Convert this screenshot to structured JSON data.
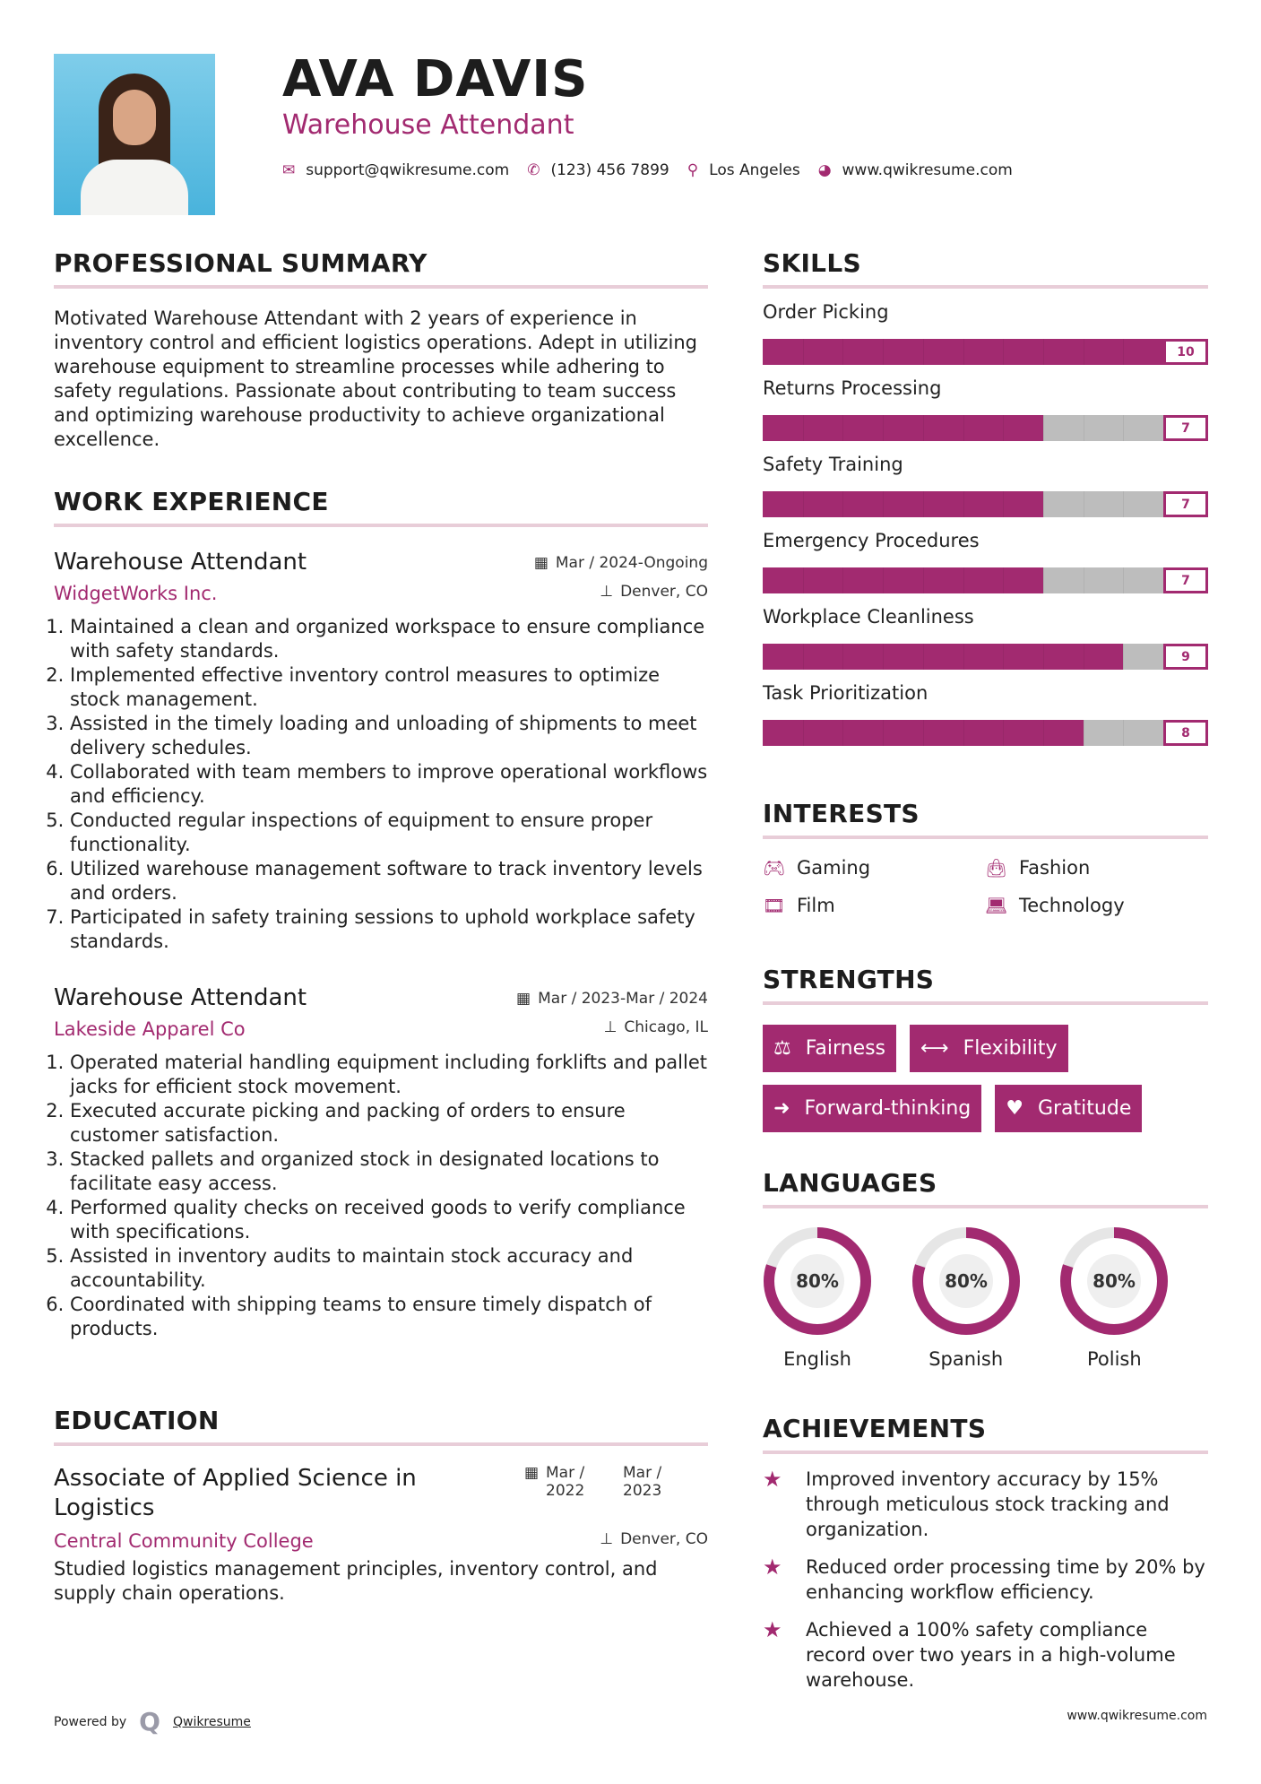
{
  "header": {
    "name": "AVA DAVIS",
    "title": "Warehouse Attendant",
    "email": "support@qwikresume.com",
    "phone": "(123) 456 7899",
    "location": "Los Angeles",
    "website": "www.qwikresume.com"
  },
  "summary": {
    "heading": "PROFESSIONAL SUMMARY",
    "text": "Motivated Warehouse Attendant with 2 years of experience in inventory control and efficient logistics operations. Adept in utilizing warehouse equipment to streamline processes while adhering to safety regulations. Passionate about contributing to team success and optimizing warehouse productivity to achieve organizational excellence."
  },
  "experience": {
    "heading": "WORK EXPERIENCE",
    "jobs": [
      {
        "title": "Warehouse Attendant",
        "date": "Mar / 2024-Ongoing",
        "company": "WidgetWorks Inc.",
        "location": "Denver, CO",
        "bullets": [
          "Maintained a clean and organized workspace to ensure compliance with safety standards.",
          "Implemented effective inventory control measures to optimize stock management.",
          "Assisted in the timely loading and unloading of shipments to meet delivery schedules.",
          "Collaborated with team members to improve operational workflows and efficiency.",
          "Conducted regular inspections of equipment to ensure proper functionality.",
          "Utilized warehouse management software to track inventory levels and orders.",
          "Participated in safety training sessions to uphold workplace safety standards."
        ]
      },
      {
        "title": "Warehouse Attendant",
        "date": "Mar / 2023-Mar / 2024",
        "company": "Lakeside Apparel Co",
        "location": "Chicago, IL",
        "bullets": [
          "Operated material handling equipment including forklifts and pallet jacks for efficient stock movement.",
          "Executed accurate picking and packing of orders to ensure customer satisfaction.",
          "Stacked pallets and organized stock in designated locations to facilitate easy access.",
          "Performed quality checks on received goods to verify compliance with specifications.",
          "Assisted in inventory audits to maintain stock accuracy and accountability.",
          "Coordinated with shipping teams to ensure timely dispatch of products."
        ]
      }
    ]
  },
  "education": {
    "heading": "EDUCATION",
    "degree": "Associate of Applied Science in Logistics",
    "start": "Mar / 2022",
    "end": "Mar / 2023",
    "school": "Central Community College",
    "location": "Denver, CO",
    "description": "Studied logistics management principles, inventory control, and supply chain operations."
  },
  "skills": {
    "heading": "SKILLS",
    "max": 10,
    "items": [
      {
        "label": "Order Picking",
        "value": 10
      },
      {
        "label": "Returns Processing",
        "value": 7
      },
      {
        "label": "Safety Training",
        "value": 7
      },
      {
        "label": "Emergency Procedures",
        "value": 7
      },
      {
        "label": "Workplace Cleanliness",
        "value": 9
      },
      {
        "label": "Task Prioritization",
        "value": 8
      }
    ]
  },
  "interests": {
    "heading": "INTERESTS",
    "items": [
      {
        "label": "Gaming",
        "icon": "gamepad-icon"
      },
      {
        "label": "Fashion",
        "icon": "shopping-bag-icon"
      },
      {
        "label": "Film",
        "icon": "film-icon"
      },
      {
        "label": "Technology",
        "icon": "laptop-icon"
      }
    ]
  },
  "strengths": {
    "heading": "STRENGTHS",
    "items": [
      {
        "label": "Fairness",
        "icon": "balance-scale-icon"
      },
      {
        "label": "Flexibility",
        "icon": "arrows-horizontal-icon"
      },
      {
        "label": "Forward-thinking",
        "icon": "arrow-right-icon"
      },
      {
        "label": "Gratitude",
        "icon": "heart-icon"
      }
    ]
  },
  "languages": {
    "heading": "LANGUAGES",
    "items": [
      {
        "name": "English",
        "percent": 80,
        "label": "80%"
      },
      {
        "name": "Spanish",
        "percent": 80,
        "label": "80%"
      },
      {
        "name": "Polish",
        "percent": 80,
        "label": "80%"
      }
    ]
  },
  "achievements": {
    "heading": "ACHIEVEMENTS",
    "items": [
      "Improved inventory accuracy by 15% through meticulous stock tracking and organization.",
      "Reduced order processing time by 20% by enhancing workflow efficiency.",
      "Achieved a 100% safety compliance record over two years in a high-volume warehouse."
    ]
  },
  "footer": {
    "powered": "Powered by",
    "brand": "Qwikresume",
    "site": "www.qwikresume.com"
  },
  "colors": {
    "accent": "#a22a70",
    "divider": "#e8cdd8",
    "bar_empty": "#bdbdbd"
  }
}
